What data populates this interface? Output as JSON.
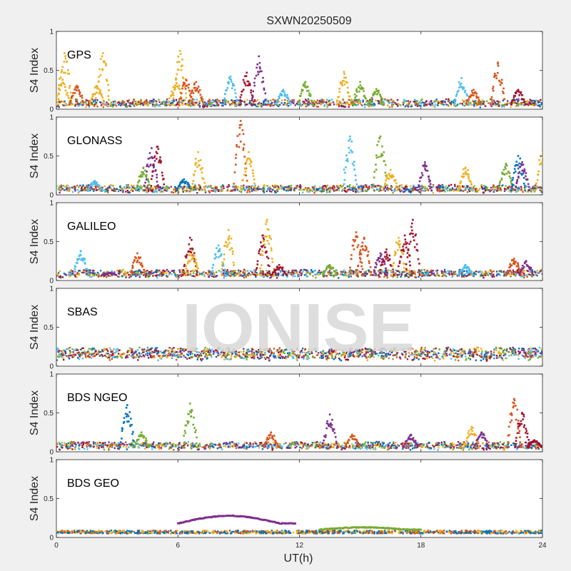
{
  "chart_data": {
    "type": "scatter",
    "title": "SXWN20250509",
    "xlabel": "UT(h)",
    "ylabel": "S4 Index",
    "xlim": [
      0,
      24
    ],
    "xticks": [
      "0",
      "6",
      "12",
      "18",
      "24"
    ],
    "ylim": [
      0,
      1
    ],
    "yticks": [
      "0",
      "0.5",
      "1"
    ],
    "grid": false,
    "watermark": "IONISE",
    "palette": [
      "#0072bd",
      "#d95319",
      "#edb120",
      "#7e2f8e",
      "#77ac30",
      "#4dbeee",
      "#a2142f"
    ],
    "panels": [
      {
        "name": "GPS",
        "baseline": 0.06,
        "noise": 0.05,
        "spikes": [
          [
            0.3,
            0.38,
            2
          ],
          [
            0.4,
            0.72,
            2
          ],
          [
            1.0,
            0.3,
            1
          ],
          [
            2.0,
            0.3,
            2
          ],
          [
            2.3,
            0.72,
            2
          ],
          [
            5.9,
            0.38,
            2
          ],
          [
            6.1,
            0.75,
            2
          ],
          [
            6.4,
            0.38,
            1
          ],
          [
            6.9,
            0.35,
            1
          ],
          [
            8.6,
            0.42,
            5
          ],
          [
            9.4,
            0.47,
            6
          ],
          [
            10.0,
            0.68,
            3
          ],
          [
            11.2,
            0.25,
            5
          ],
          [
            12.3,
            0.35,
            4
          ],
          [
            14.2,
            0.48,
            2
          ],
          [
            15.0,
            0.35,
            4
          ],
          [
            15.8,
            0.26,
            4
          ],
          [
            20.0,
            0.4,
            5
          ],
          [
            20.6,
            0.25,
            1
          ],
          [
            21.8,
            0.6,
            1
          ],
          [
            22.8,
            0.25,
            6
          ]
        ]
      },
      {
        "name": "GLONASS",
        "baseline": 0.06,
        "noise": 0.05,
        "spikes": [
          [
            1.9,
            0.18,
            5
          ],
          [
            4.3,
            0.35,
            4
          ],
          [
            4.7,
            0.6,
            3
          ],
          [
            5.0,
            0.62,
            6
          ],
          [
            6.3,
            0.2,
            0
          ],
          [
            7.0,
            0.55,
            2
          ],
          [
            9.1,
            0.95,
            1
          ],
          [
            9.5,
            0.55,
            2
          ],
          [
            14.5,
            0.75,
            5
          ],
          [
            16.0,
            0.75,
            4
          ],
          [
            16.5,
            0.32,
            2
          ],
          [
            18.2,
            0.42,
            3
          ],
          [
            20.2,
            0.35,
            2
          ],
          [
            22.2,
            0.4,
            4
          ],
          [
            22.8,
            0.5,
            0
          ],
          [
            23.0,
            0.42,
            3
          ],
          [
            24.0,
            0.58,
            2
          ]
        ]
      },
      {
        "name": "GALILEO",
        "baseline": 0.07,
        "noise": 0.05,
        "spikes": [
          [
            1.2,
            0.38,
            5
          ],
          [
            2.6,
            0.1,
            3
          ],
          [
            4.0,
            0.35,
            1
          ],
          [
            6.6,
            0.55,
            6
          ],
          [
            6.7,
            0.38,
            2
          ],
          [
            8.0,
            0.45,
            5
          ],
          [
            8.5,
            0.65,
            2
          ],
          [
            10.2,
            0.58,
            6
          ],
          [
            10.4,
            0.78,
            2
          ],
          [
            11.0,
            0.2,
            6
          ],
          [
            13.5,
            0.2,
            4
          ],
          [
            14.8,
            0.62,
            1
          ],
          [
            15.2,
            0.55,
            1
          ],
          [
            16.0,
            0.35,
            3
          ],
          [
            16.3,
            0.4,
            6
          ],
          [
            16.9,
            0.55,
            2
          ],
          [
            17.2,
            0.58,
            6
          ],
          [
            17.6,
            0.78,
            6
          ],
          [
            20.2,
            0.2,
            5
          ],
          [
            22.6,
            0.28,
            1
          ],
          [
            23.2,
            0.25,
            3
          ]
        ]
      },
      {
        "name": "SBAS",
        "baseline": 0.13,
        "noise": 0.08,
        "spikes": []
      },
      {
        "name": "BDS NGEO",
        "baseline": 0.06,
        "noise": 0.05,
        "spikes": [
          [
            3.5,
            0.6,
            0
          ],
          [
            4.2,
            0.25,
            4
          ],
          [
            6.6,
            0.62,
            4
          ],
          [
            10.6,
            0.25,
            1
          ],
          [
            13.5,
            0.48,
            3
          ],
          [
            14.6,
            0.22,
            1
          ],
          [
            17.5,
            0.22,
            3
          ],
          [
            20.5,
            0.32,
            2
          ],
          [
            21.0,
            0.25,
            3
          ],
          [
            22.6,
            0.68,
            1
          ],
          [
            23.0,
            0.5,
            6
          ],
          [
            23.6,
            0.15,
            6
          ]
        ]
      },
      {
        "name": "BDS GEO",
        "baseline": 0.08,
        "noise": 0.02,
        "spikes": [],
        "arcs": [
          {
            "x": [
              6.0,
              11.8
            ],
            "peak": 0.28,
            "base": 0.18,
            "color": 3
          },
          {
            "x": [
              13.0,
              18.0
            ],
            "peak": 0.13,
            "base": 0.1,
            "color": 4
          }
        ]
      }
    ]
  }
}
